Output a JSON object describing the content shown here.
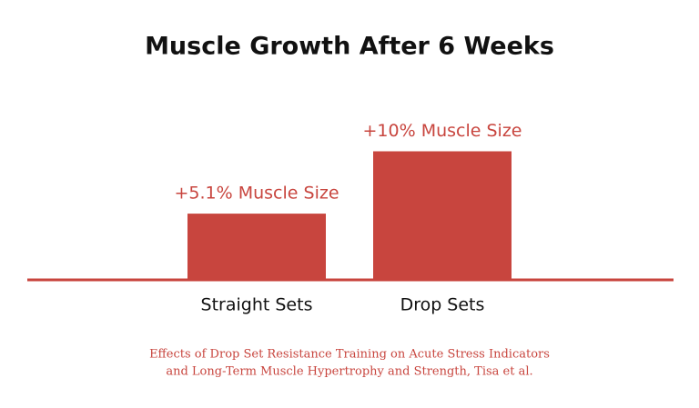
{
  "chart_data": {
    "type": "bar",
    "title": "Muscle Growth After 6 Weeks",
    "categories": [
      "Straight Sets",
      "Drop Sets"
    ],
    "values": [
      5.1,
      10
    ],
    "value_labels": [
      "+5.1% Muscle Size",
      "+10% Muscle Size"
    ],
    "color": "#c8453e",
    "source": [
      "Effects of Drop Set Resistance Training on Acute Stress Indicators",
      "and Long-Term Muscle Hypertrophy and Strength, Tisa et al."
    ]
  }
}
